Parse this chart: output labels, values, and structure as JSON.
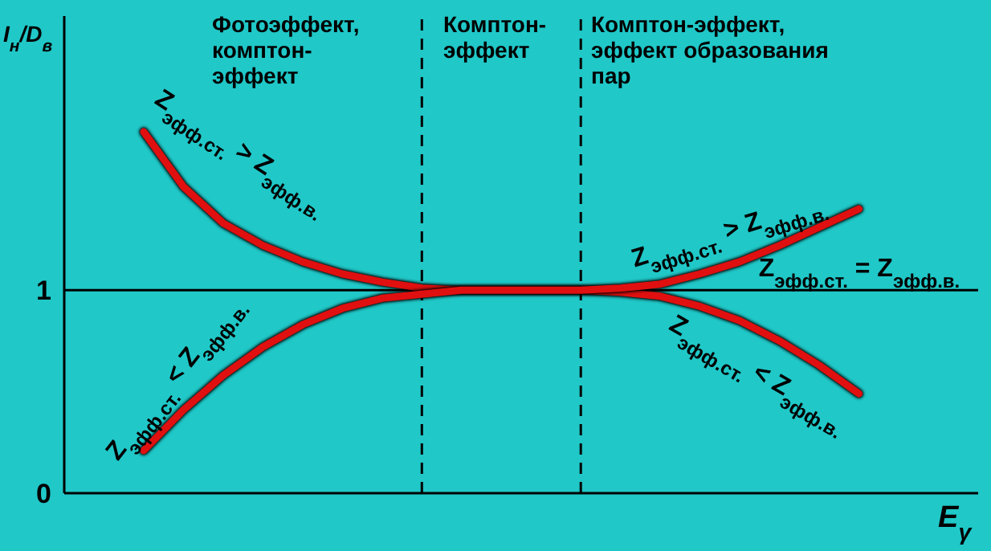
{
  "chart_data": {
    "type": "line",
    "categories": [
      null,
      null,
      null,
      null,
      null,
      null,
      null,
      null,
      null,
      null,
      null,
      null,
      null,
      null,
      null,
      null,
      null,
      null,
      null,
      null,
      null,
      null,
      null,
      null
    ],
    "series": [
      {
        "color": "#e01010",
        "values": [
          null,
          null,
          1.78,
          1.51,
          1.33,
          1.22,
          1.14,
          1.08,
          1.04,
          1.01,
          1,
          1,
          1,
          1,
          0.99,
          0.97,
          0.92,
          0.85,
          0.75,
          0.63,
          0.49,
          null,
          null,
          null
        ]
      },
      {
        "color": "#e01010",
        "values": [
          null,
          null,
          0.21,
          0.41,
          0.58,
          0.72,
          0.83,
          0.91,
          0.96,
          0.98,
          1,
          1,
          1,
          1,
          1.01,
          1.03,
          1.08,
          1.14,
          1.22,
          1.31,
          1.4,
          null,
          null,
          null
        ]
      }
    ],
    "ylim": [
      0,
      2.35
    ],
    "yticks": [
      0,
      1
    ],
    "ylabel": "I$_{н}$/D$_{в}$",
    "xlabel": "E$_{γ}$",
    "ref_lines": [
      {
        "axis": "y",
        "value": 1,
        "color": "#000000",
        "line_style": "solid"
      }
    ],
    "annotations": [
      "Фотоэффект,\nкомптон-\nэффект",
      "Комптон-\nэффект",
      "Комптон-эффект,\nэффект образования\nпар",
      "Z$_{эфф.ст.}$ > Z$_{эфф.в.}$",
      "Z$_{эфф.ст.}$ < Z$_{эфф.в.}$",
      "Z$_{эфф.ст.}$ > Z$_{эфф.в.}$",
      "Z$_{эфф.ст.}$ = Z$_{эфф.в.}$",
      "Z$_{эфф.ст.}$ < Z$_{эфф.в.}$"
    ],
    "grid": false,
    "legend": false,
    "marker": "none",
    "line_style": "solid"
  }
}
